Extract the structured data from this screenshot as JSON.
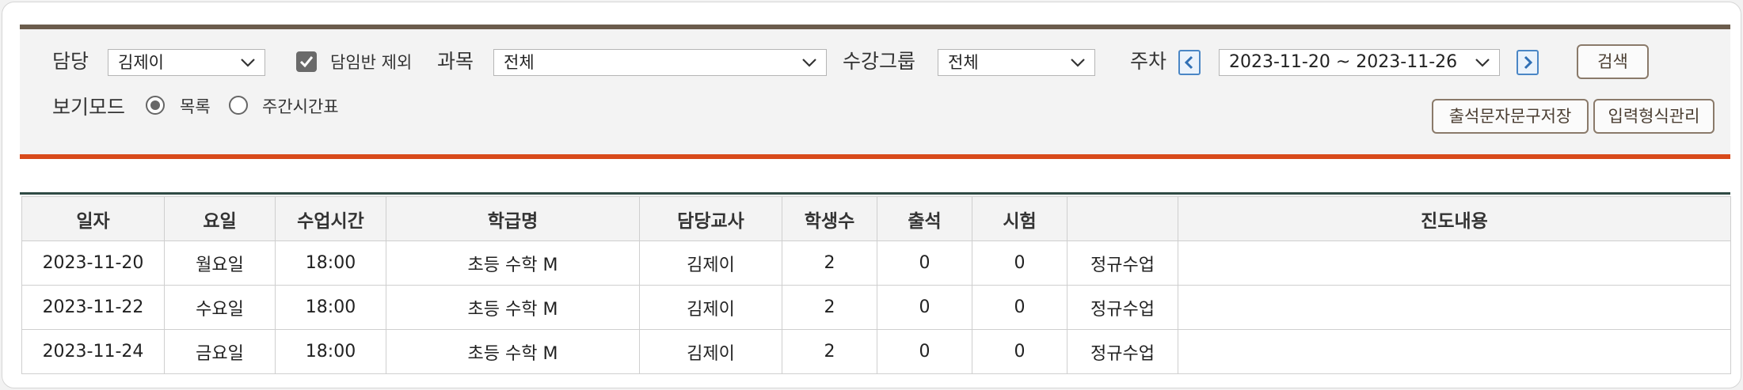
{
  "filters": {
    "teacher_label": "담당",
    "teacher_value": "김제이",
    "exclude_homeroom_label": "담임반 제외",
    "exclude_homeroom_checked": true,
    "subject_label": "과목",
    "subject_value": "전체",
    "group_label": "수강그룹",
    "group_value": "전체",
    "week_label": "주차",
    "week_value": "2023-11-20 ~ 2023-11-26",
    "search_button": "검색",
    "view_mode_label": "보기모드",
    "view_mode_options": [
      "목록",
      "주간시간표"
    ],
    "view_mode_selected": "목록"
  },
  "actions": {
    "save_sms_template": "출석문자문구저장",
    "input_format_manage": "입력형식관리"
  },
  "table": {
    "columns": [
      "일자",
      "요일",
      "수업시간",
      "학급명",
      "담당교사",
      "학생수",
      "출석",
      "시험",
      "",
      "진도내용"
    ],
    "rows": [
      [
        "2023-11-20",
        "월요일",
        "18:00",
        "초등 수학 M",
        "김제이",
        "2",
        "0",
        "0",
        "정규수업",
        ""
      ],
      [
        "2023-11-22",
        "수요일",
        "18:00",
        "초등 수학 M",
        "김제이",
        "2",
        "0",
        "0",
        "정규수업",
        ""
      ],
      [
        "2023-11-24",
        "금요일",
        "18:00",
        "초등 수학 M",
        "김제이",
        "2",
        "0",
        "0",
        "정규수업",
        ""
      ]
    ]
  },
  "colors": {
    "top_border": "#6b5c4c",
    "accent_border": "#d84a1b",
    "nav_blue": "#4a86c5",
    "button_border": "#8a7a6a"
  }
}
